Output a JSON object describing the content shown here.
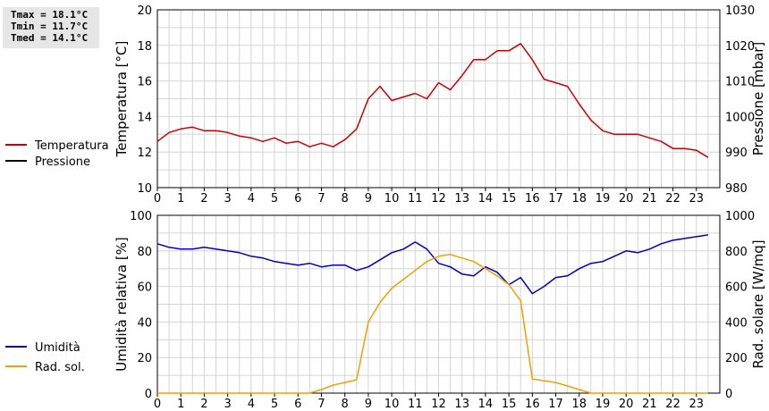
{
  "stats": {
    "tmax": "Tmax = 18.1°C",
    "tmin": "Tmin = 11.7°C",
    "tmed": "Tmed = 14.1°C"
  },
  "colors": {
    "temperature": "#cc0000",
    "pressure": "#000000",
    "humidity": "#0000bb",
    "solar": "#f0a000",
    "grid": "#d4d4d4"
  },
  "chart_data": [
    {
      "type": "line",
      "x_label_ticks": [
        "0",
        "1",
        "2",
        "3",
        "4",
        "5",
        "6",
        "7",
        "8",
        "9",
        "10",
        "11",
        "12",
        "13",
        "14",
        "15",
        "16",
        "17",
        "18",
        "19",
        "20",
        "21",
        "22",
        "23"
      ],
      "xlim": [
        0,
        24
      ],
      "ylabel": "Temperatura [°C]",
      "ylim": [
        10,
        20
      ],
      "yticks": [
        "10",
        "12",
        "14",
        "16",
        "18",
        "20"
      ],
      "ylabel_right": "Pressione [mbar]",
      "ylim_right": [
        980,
        1030
      ],
      "yticks_right": [
        "980",
        "990",
        "1000",
        "1010",
        "1020",
        "1030"
      ],
      "legend": [
        "Temperatura",
        "Pressione"
      ],
      "grid": true,
      "series": [
        {
          "name": "Temperatura",
          "axis": "left",
          "x": [
            0,
            0.5,
            1,
            1.5,
            2,
            2.5,
            3,
            3.5,
            4,
            4.5,
            5,
            5.5,
            6,
            6.5,
            7,
            7.5,
            8,
            8.5,
            9,
            9.5,
            10,
            10.5,
            11,
            11.5,
            12,
            12.5,
            13,
            13.5,
            14,
            14.5,
            15,
            15.5,
            16,
            16.5,
            17,
            17.5,
            18,
            18.5,
            19,
            19.5,
            20,
            20.5,
            21,
            21.5,
            22,
            22.5,
            23,
            23.5
          ],
          "values": [
            12.6,
            13.1,
            13.3,
            13.4,
            13.2,
            13.2,
            13.1,
            12.9,
            12.8,
            12.6,
            12.8,
            12.5,
            12.6,
            12.3,
            12.5,
            12.3,
            12.7,
            13.3,
            15.0,
            15.7,
            14.9,
            15.1,
            15.3,
            15.0,
            15.9,
            15.5,
            16.3,
            17.2,
            17.2,
            17.7,
            17.7,
            18.1,
            17.2,
            16.1,
            15.9,
            15.7,
            14.7,
            13.8,
            13.2,
            13.0,
            13.0,
            13.0,
            12.8,
            12.6,
            12.2,
            12.2,
            12.1,
            11.7
          ]
        }
      ]
    },
    {
      "type": "line",
      "x_label_ticks": [
        "0",
        "1",
        "2",
        "3",
        "4",
        "5",
        "6",
        "7",
        "8",
        "9",
        "10",
        "11",
        "12",
        "13",
        "14",
        "15",
        "16",
        "17",
        "18",
        "19",
        "20",
        "21",
        "22",
        "23"
      ],
      "xlim": [
        0,
        24
      ],
      "ylabel": "Umidità relativa [%]",
      "ylim": [
        0,
        100
      ],
      "yticks": [
        "0",
        "20",
        "40",
        "60",
        "80",
        "100"
      ],
      "ylabel_right": "Rad. solare [W/mq]",
      "ylim_right": [
        0,
        1000
      ],
      "yticks_right": [
        "0",
        "200",
        "400",
        "600",
        "800",
        "1000"
      ],
      "legend": [
        "Umidità",
        "Rad. sol."
      ],
      "grid": true,
      "series": [
        {
          "name": "Umidità",
          "axis": "left",
          "x": [
            0,
            0.5,
            1,
            1.5,
            2,
            2.5,
            3,
            3.5,
            4,
            4.5,
            5,
            5.5,
            6,
            6.5,
            7,
            7.5,
            8,
            8.5,
            9,
            9.5,
            10,
            10.5,
            11,
            11.5,
            12,
            12.5,
            13,
            13.5,
            14,
            14.5,
            15,
            15.5,
            16,
            16.5,
            17,
            17.5,
            18,
            18.5,
            19,
            19.5,
            20,
            20.5,
            21,
            21.5,
            22,
            22.5,
            23,
            23.5
          ],
          "values": [
            84,
            82,
            81,
            81,
            82,
            81,
            80,
            79,
            77,
            76,
            74,
            73,
            72,
            73,
            71,
            72,
            72,
            69,
            71,
            75,
            79,
            81,
            85,
            81,
            73,
            71,
            67,
            66,
            71,
            68,
            61,
            65,
            56,
            60,
            65,
            66,
            70,
            73,
            74,
            77,
            80,
            79,
            81,
            84,
            86,
            87,
            88,
            89
          ]
        },
        {
          "name": "Rad. sol.",
          "axis": "right",
          "x": [
            0,
            0.5,
            1,
            1.5,
            2,
            2.5,
            3,
            3.5,
            4,
            4.5,
            5,
            5.5,
            6,
            6.5,
            7,
            7.5,
            8,
            8.5,
            9,
            9.5,
            10,
            10.5,
            11,
            11.5,
            12,
            12.5,
            13,
            13.5,
            14,
            14.5,
            15,
            15.5,
            16,
            16.5,
            17,
            17.5,
            18,
            18.5,
            19,
            19.5,
            20,
            20.5,
            21,
            21.5,
            22,
            22.5,
            23,
            23.5
          ],
          "values": [
            0,
            0,
            0,
            0,
            0,
            0,
            0,
            0,
            0,
            0,
            0,
            0,
            0,
            0,
            20,
            45,
            60,
            75,
            400,
            510,
            590,
            640,
            690,
            740,
            770,
            780,
            760,
            740,
            700,
            660,
            610,
            520,
            80,
            70,
            60,
            40,
            20,
            0,
            0,
            0,
            0,
            0,
            0,
            0,
            0,
            0,
            0,
            0
          ]
        }
      ]
    }
  ]
}
